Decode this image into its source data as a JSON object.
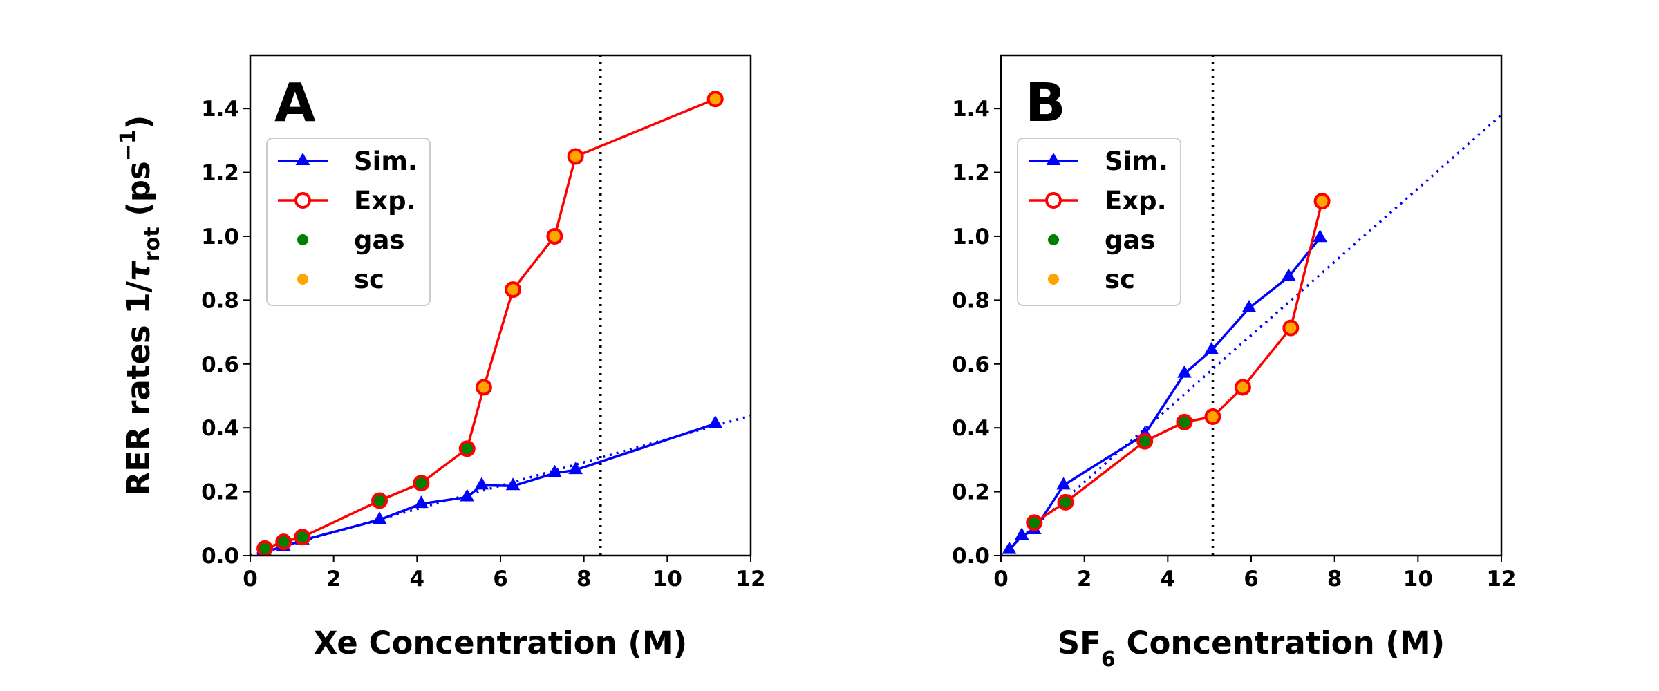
{
  "figure": {
    "ylabel_main": "RER rates 1/",
    "ylabel_tau": "τ",
    "ylabel_sub": "rot",
    "ylabel_unit_open": " (ps",
    "ylabel_unit_sup": "−1",
    "ylabel_unit_close": ")"
  },
  "colors": {
    "sim": "#0000ff",
    "exp": "#ff0000",
    "gas": "#008000",
    "sc": "#ffa500"
  },
  "legend": [
    "Sim.",
    "Exp.",
    "gas",
    "sc"
  ],
  "chart_data": [
    {
      "type": "line",
      "panel_label": "A",
      "xlabel": "Xe Concentration (M)",
      "xlabel_parts": {
        "pre": "Xe Concentration (M)",
        "sub": "",
        "post": ""
      },
      "ylabel": "RER rates 1/τrot (ps−1)",
      "xlim": [
        0,
        12
      ],
      "ylim": [
        0,
        1.567
      ],
      "xticks": [
        0,
        2,
        4,
        6,
        8,
        10,
        12
      ],
      "yticks": [
        0.0,
        0.2,
        0.4,
        0.6,
        0.8,
        1.0,
        1.2,
        1.4
      ],
      "xtick_labels": [
        "0",
        "2",
        "4",
        "6",
        "8",
        "10",
        "12"
      ],
      "ytick_labels": [
        "0.0",
        "0.2",
        "0.4",
        "0.6",
        "0.8",
        "1.0",
        "1.2",
        "1.4"
      ],
      "legend_position": "upper-left",
      "vline_x": 8.4,
      "fit_line": {
        "slope": 0.0365,
        "intercept": 0.0,
        "x_range": [
          0,
          12
        ]
      },
      "series": [
        {
          "name": "Sim.",
          "style": "line-triangle",
          "x": [
            0.35,
            0.8,
            1.25,
            3.1,
            4.1,
            5.2,
            5.55,
            6.3,
            7.3,
            7.8,
            11.15
          ],
          "y": [
            0.012,
            0.028,
            0.048,
            0.112,
            0.162,
            0.183,
            0.22,
            0.218,
            0.258,
            0.268,
            0.413
          ]
        },
        {
          "name": "Exp.",
          "style": "line-circle",
          "x": [
            0.35,
            0.8,
            1.25,
            3.1,
            4.1,
            5.2,
            5.6,
            6.3,
            7.3,
            7.8,
            11.15
          ],
          "y": [
            0.022,
            0.043,
            0.058,
            0.172,
            0.227,
            0.335,
            0.527,
            0.833,
            1.0,
            1.25,
            1.43
          ],
          "phase": [
            "gas",
            "gas",
            "gas",
            "gas",
            "gas",
            "gas",
            "sc",
            "sc",
            "sc",
            "sc",
            "sc"
          ]
        }
      ]
    },
    {
      "type": "line",
      "panel_label": "B",
      "xlabel": "SF6 Concentration (M)",
      "xlabel_parts": {
        "pre": "SF",
        "sub": "6",
        "post": " Concentration (M)"
      },
      "ylabel": "",
      "xlim": [
        0,
        12
      ],
      "ylim": [
        0,
        1.567
      ],
      "xticks": [
        0,
        2,
        4,
        6,
        8,
        10,
        12
      ],
      "yticks": [
        0.0,
        0.2,
        0.4,
        0.6,
        0.8,
        1.0,
        1.2,
        1.4
      ],
      "xtick_labels": [
        "0",
        "2",
        "4",
        "6",
        "8",
        "10",
        "12"
      ],
      "ytick_labels": [
        "0.0",
        "0.2",
        "0.4",
        "0.6",
        "0.8",
        "1.0",
        "1.2",
        "1.4"
      ],
      "legend_position": "upper-left",
      "vline_x": 5.08,
      "fit_line": {
        "slope": 0.115,
        "intercept": 0.0,
        "x_range": [
          0,
          12
        ]
      },
      "series": [
        {
          "name": "Sim.",
          "style": "line-triangle",
          "x": [
            0.2,
            0.5,
            0.8,
            1.5,
            3.45,
            4.4,
            5.05,
            5.95,
            6.9,
            7.65
          ],
          "y": [
            0.018,
            0.062,
            0.08,
            0.22,
            0.38,
            0.57,
            0.643,
            0.775,
            0.873,
            0.995
          ]
        },
        {
          "name": "Exp.",
          "style": "line-circle",
          "x": [
            0.8,
            1.55,
            3.45,
            4.4,
            5.08,
            5.8,
            6.95,
            7.7
          ],
          "y": [
            0.103,
            0.167,
            0.358,
            0.418,
            0.435,
            0.527,
            0.713,
            1.11
          ],
          "phase": [
            "gas",
            "gas",
            "gas",
            "gas",
            "sc",
            "sc",
            "sc",
            "sc"
          ]
        }
      ]
    }
  ]
}
